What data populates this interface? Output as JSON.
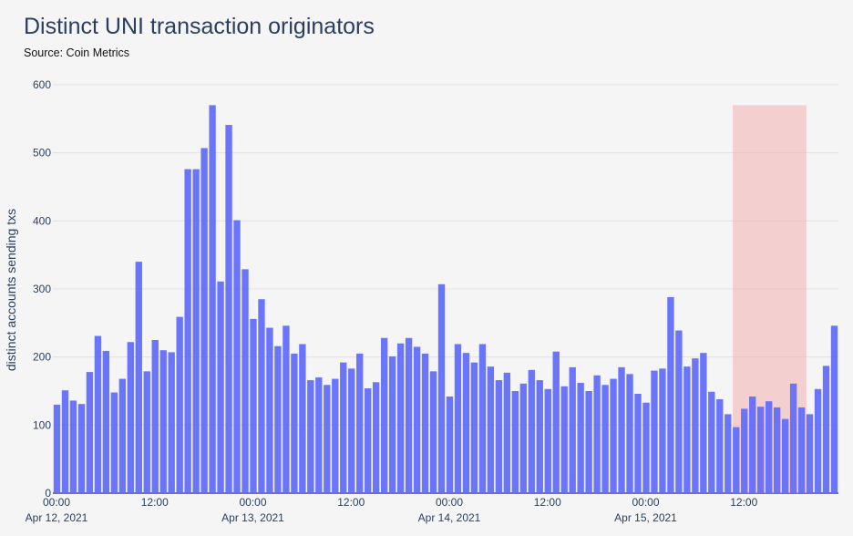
{
  "chart_data": {
    "type": "bar",
    "title": "Distinct UNI transaction originators",
    "subtitle": "Source: Coin Metrics",
    "ylabel": "distinct accounts sending txs",
    "xlabel": "",
    "ylim": [
      0,
      600
    ],
    "yticks": [
      "0",
      "100",
      "200",
      "300",
      "400",
      "500",
      "600"
    ],
    "xticks": [
      {
        "label": "00:00",
        "sublabel": "Apr 12, 2021",
        "hour": 0
      },
      {
        "label": "12:00",
        "sublabel": "",
        "hour": 12
      },
      {
        "label": "00:00",
        "sublabel": "Apr 13, 2021",
        "hour": 24
      },
      {
        "label": "12:00",
        "sublabel": "",
        "hour": 36
      },
      {
        "label": "00:00",
        "sublabel": "Apr 14, 2021",
        "hour": 48
      },
      {
        "label": "12:00",
        "sublabel": "",
        "hour": 60
      },
      {
        "label": "00:00",
        "sublabel": "Apr 15, 2021",
        "hour": 72
      },
      {
        "label": "12:00",
        "sublabel": "",
        "hour": 84
      }
    ],
    "x_start": "2021-04-12 00:00",
    "bin": "1 hour",
    "values": [
      130,
      151,
      136,
      131,
      178,
      231,
      209,
      148,
      168,
      222,
      340,
      179,
      225,
      210,
      207,
      259,
      476,
      476,
      507,
      570,
      311,
      541,
      401,
      329,
      256,
      285,
      243,
      216,
      246,
      205,
      219,
      166,
      170,
      159,
      168,
      192,
      183,
      205,
      154,
      163,
      228,
      201,
      220,
      228,
      215,
      205,
      179,
      307,
      142,
      219,
      206,
      192,
      219,
      186,
      166,
      177,
      150,
      161,
      181,
      166,
      153,
      208,
      157,
      185,
      162,
      150,
      173,
      159,
      168,
      185,
      175,
      146,
      133,
      180,
      183,
      288,
      239,
      186,
      198,
      206,
      149,
      138,
      116,
      97,
      124,
      142,
      127,
      135,
      126,
      109,
      161,
      126,
      116,
      153,
      187,
      246
    ],
    "highlight": {
      "start_hour": 83,
      "end_hour": 92,
      "color": "#f4b6b6"
    },
    "bar_color": "#636efa",
    "grid": true
  }
}
